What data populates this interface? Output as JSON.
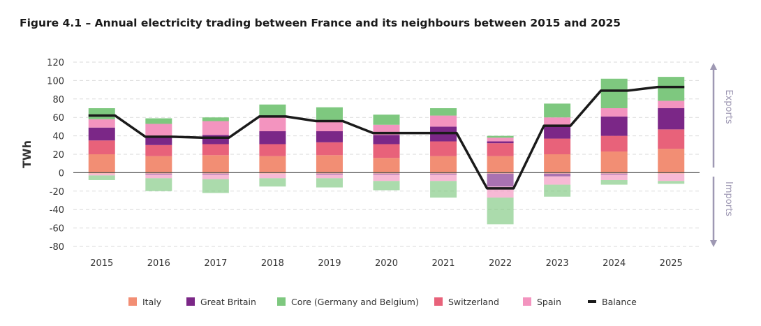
{
  "title": "Figure 4.1 – Annual electricity trading between France and its neighbours between 2015 and 2025",
  "chart_data": {
    "type": "bar",
    "stacked": true,
    "ylabel": "TWh",
    "ylim": [
      -80,
      120
    ],
    "yticks": [
      -80,
      -60,
      -40,
      -20,
      0,
      20,
      40,
      60,
      80,
      100,
      120
    ],
    "grid": true,
    "legend_position": "bottom",
    "side_labels": {
      "top": "Exports",
      "bottom": "Imports"
    },
    "categories": [
      "2015",
      "2016",
      "2017",
      "2018",
      "2019",
      "2020",
      "2021",
      "2022",
      "2023",
      "2024",
      "2025"
    ],
    "series": [
      {
        "name": "Italy",
        "color": "#f28e74",
        "exports": [
          20,
          18,
          19,
          18,
          19,
          16,
          18,
          18,
          20,
          23,
          26
        ],
        "imports": [
          -1,
          -1,
          -1,
          -1,
          -1,
          -1,
          -1,
          -1,
          -1,
          -1,
          -1
        ]
      },
      {
        "name": "Switzerland",
        "color": "#e8627a",
        "exports": [
          15,
          12,
          12,
          13,
          14,
          15,
          16,
          14,
          17,
          17,
          21
        ],
        "imports": [
          0,
          0,
          0,
          0,
          0,
          0,
          0,
          0,
          0,
          0,
          0
        ]
      },
      {
        "name": "Great Britain",
        "color": "#7b2787",
        "exports": [
          14,
          10,
          10,
          14,
          12,
          10,
          16,
          2,
          15,
          21,
          23
        ],
        "imports": [
          0,
          -1,
          -1,
          0,
          -1,
          -1,
          -1,
          -14,
          -3,
          -1,
          0
        ]
      },
      {
        "name": "Spain",
        "color": "#f394bf",
        "exports": [
          9,
          13,
          15,
          15,
          12,
          11,
          12,
          4,
          8,
          9,
          8
        ],
        "imports": [
          -2,
          -4,
          -5,
          -5,
          -4,
          -7,
          -7,
          -12,
          -9,
          -6,
          -8
        ]
      },
      {
        "name": "Core (Germany and Belgium)",
        "color": "#7ec87f",
        "exports": [
          12,
          6,
          4,
          14,
          14,
          11,
          8,
          2,
          15,
          32,
          26
        ],
        "imports": [
          -5,
          -14,
          -15,
          -9,
          -10,
          -10,
          -18,
          -29,
          -13,
          -5,
          -3
        ]
      }
    ],
    "balance": {
      "name": "Balance",
      "color": "#1a1a1a",
      "values": [
        62,
        39,
        38,
        61,
        56,
        43,
        43,
        -17,
        51,
        89,
        93
      ]
    },
    "legend_order": [
      "Italy",
      "Great Britain",
      "Core (Germany and Belgium)",
      "Switzerland",
      "Spain",
      "Balance"
    ]
  }
}
